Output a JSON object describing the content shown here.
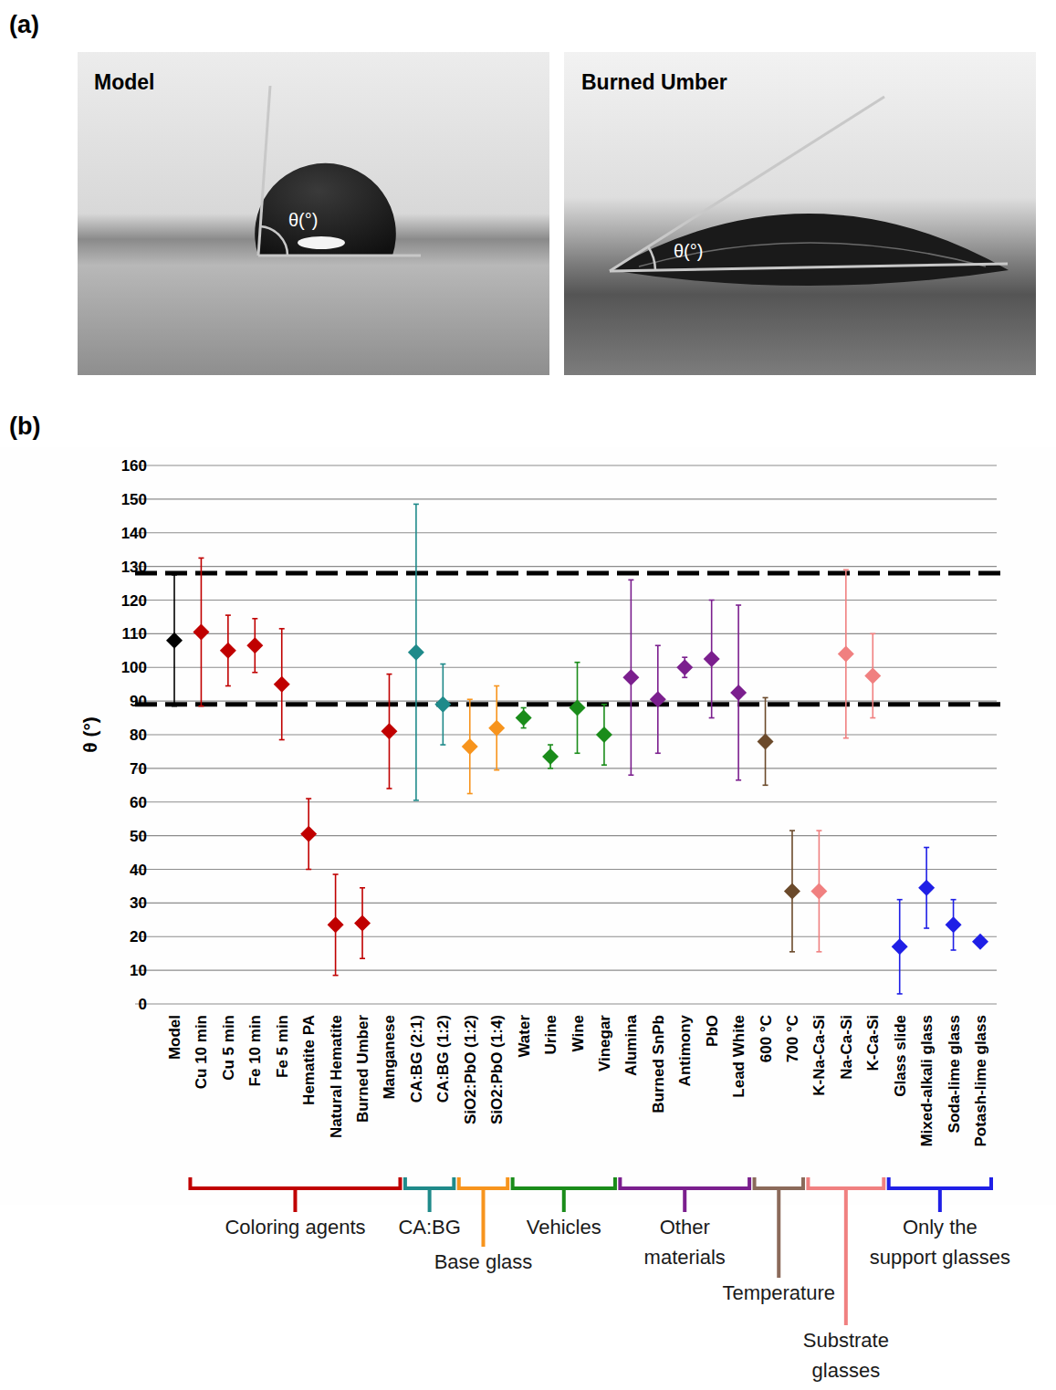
{
  "panel_a": {
    "label": "(a)",
    "images": [
      {
        "title": "Model",
        "angle_label": "θ(°)"
      },
      {
        "title": "Burned Umber",
        "angle_label": "θ(°)"
      }
    ]
  },
  "chart_data": {
    "type": "scatter",
    "panel_label": "(b)",
    "y_label": "θ (°)",
    "categories": [
      "Model",
      "Cu 10 min",
      "Cu 5 min",
      "Fe 10 min",
      "Fe 5 min",
      "Hematite PA",
      "Natural Hematite",
      "Burned Umber",
      "Manganese",
      "CA:BG (2:1)",
      "CA:BG (1:2)",
      "SiO2:PbO (1:2)",
      "SiO2:PbO (1:4)",
      "Water",
      "Urine",
      "Wine",
      "Vinegar",
      "Alumina",
      "Burned SnPb",
      "Antimony",
      "PbO",
      "Lead White",
      "600 °C",
      "700 °C",
      "K-Na-Ca-Si",
      "Na-Ca-Si",
      "K-Ca-Si",
      "Glass slide",
      "Mixed-alkali glass",
      "Soda-lime glass",
      "Potash-lime glass"
    ],
    "values": [
      108,
      110.5,
      105,
      106.5,
      95,
      50.5,
      23.5,
      24,
      81,
      104.5,
      89,
      76.5,
      82,
      85,
      73.5,
      88,
      80,
      97,
      90.5,
      100,
      102.5,
      92.5,
      78,
      33.5,
      33.5,
      104,
      97.5,
      17,
      34.5,
      23.5,
      18.5
    ],
    "errors": [
      19.5,
      22,
      10.5,
      8,
      16.5,
      10.5,
      15,
      10.5,
      17,
      44,
      12,
      14,
      12.5,
      3,
      3.5,
      13.5,
      9,
      29,
      16,
      3,
      17.5,
      26,
      13,
      18,
      18,
      25,
      12.5,
      14,
      12,
      7.5,
      1
    ],
    "colors": [
      "#000000",
      "#c00000",
      "#c00000",
      "#c00000",
      "#c00000",
      "#c00000",
      "#c00000",
      "#c00000",
      "#c00000",
      "#1f8a8a",
      "#1f8a8a",
      "#f7941d",
      "#f7941d",
      "#1a8c1a",
      "#1a8c1a",
      "#1a8c1a",
      "#1a8c1a",
      "#7b1f8e",
      "#7b1f8e",
      "#7b1f8e",
      "#7b1f8e",
      "#7b1f8e",
      "#6b4a2b",
      "#6b4a2b",
      "#f08080",
      "#f08080",
      "#f08080",
      "#1f1fe6",
      "#1f1fe6",
      "#1f1fe6",
      "#1f1fe6"
    ],
    "marker": "diamond",
    "ylim": [
      0,
      160
    ],
    "yticks": [
      0,
      10,
      20,
      30,
      40,
      50,
      60,
      70,
      80,
      90,
      100,
      110,
      120,
      130,
      140,
      150,
      160
    ],
    "grid": true,
    "reference_lines": [
      {
        "value": 89,
        "line_style": "dashed"
      },
      {
        "value": 128,
        "line_style": "dashed"
      }
    ],
    "groups": [
      {
        "label": "Coloring agents",
        "color": "#c00000",
        "count": 8
      },
      {
        "label": "CA:BG",
        "color": "#1f8a8a",
        "count": 2
      },
      {
        "label": "Base glass",
        "color": "#f7941d",
        "count": 2
      },
      {
        "label": "Vehicles",
        "color": "#1a8c1a",
        "count": 4
      },
      {
        "label": "Other materials",
        "color": "#7b1f8e",
        "count": 5
      },
      {
        "label": "Temperature",
        "color": "#8b6a5a",
        "count": 2
      },
      {
        "label": "Substrate glasses",
        "color": "#f08080",
        "count": 3
      },
      {
        "label": "Only the support glasses",
        "color": "#1f1fe6",
        "count": 4
      }
    ]
  }
}
